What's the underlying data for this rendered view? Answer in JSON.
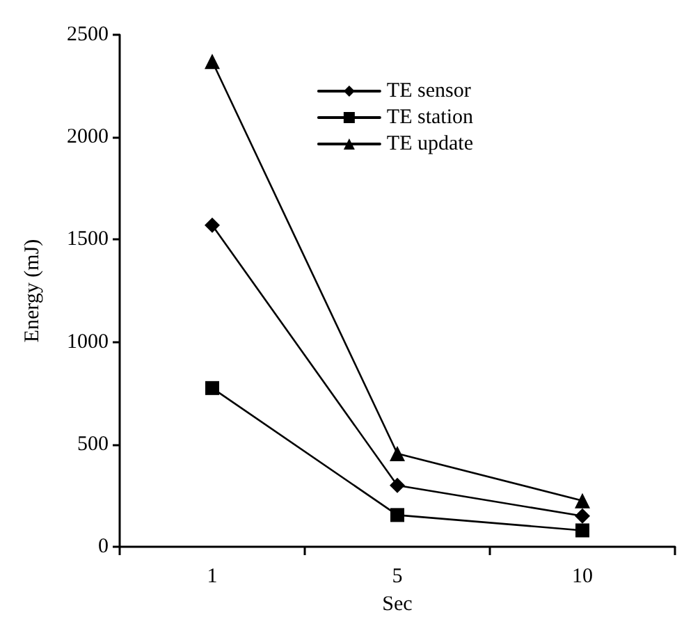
{
  "chart_data": {
    "type": "line",
    "xlabel": "Sec",
    "ylabel": "Energy (mJ)",
    "categories": [
      "1",
      "5",
      "10"
    ],
    "series": [
      {
        "name": "TE sensor",
        "color": "#000000",
        "marker": "diamond",
        "values": [
          1570,
          300,
          150
        ]
      },
      {
        "name": "TE station",
        "color": "#000000",
        "marker": "square",
        "values": [
          775,
          155,
          80
        ]
      },
      {
        "name": "TE update",
        "color": "#000000",
        "marker": "triangle",
        "values": [
          2370,
          455,
          225
        ]
      }
    ],
    "ylim": [
      0,
      2500
    ],
    "yticks": [
      0,
      500,
      1000,
      1500,
      2000,
      2500
    ],
    "grid": false,
    "legend": "top right",
    "line_style": "solid"
  }
}
